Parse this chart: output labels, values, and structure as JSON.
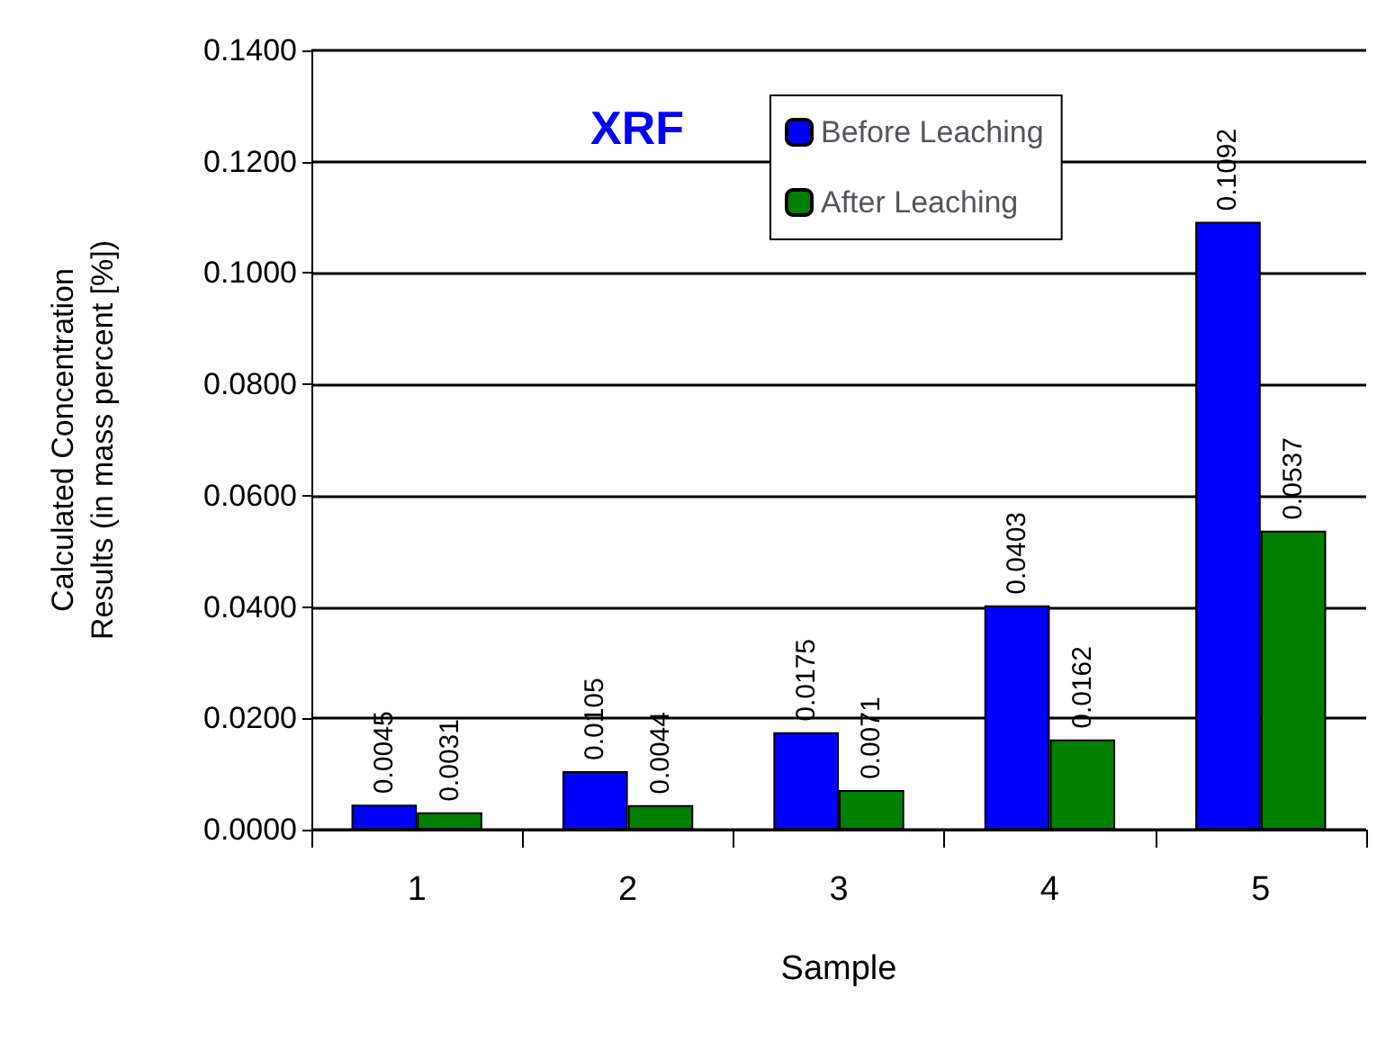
{
  "chart_data": {
    "type": "bar",
    "title": "XRF",
    "xlabel": "Sample",
    "ylabel": "Calculated Concentration\nResults (in mass percent [%])",
    "categories": [
      "1",
      "2",
      "3",
      "4",
      "5"
    ],
    "series": [
      {
        "name": "Before Leaching",
        "color": "#0000ff",
        "values": [
          0.0045,
          0.0105,
          0.0175,
          0.0403,
          0.1092
        ]
      },
      {
        "name": "After Leaching",
        "color": "#008000",
        "values": [
          0.0031,
          0.0044,
          0.0071,
          0.0162,
          0.0537
        ]
      }
    ],
    "ylim": [
      0,
      0.14
    ],
    "yticks": [
      {
        "value": 0,
        "label": "0.0000"
      },
      {
        "value": 0.02,
        "label": "0.0200"
      },
      {
        "value": 0.04,
        "label": "0.0400"
      },
      {
        "value": 0.06,
        "label": "0.0600"
      },
      {
        "value": 0.08,
        "label": "0.0800"
      },
      {
        "value": 0.1,
        "label": "0.1000"
      },
      {
        "value": 0.12,
        "label": "0.1200"
      },
      {
        "value": 0.14,
        "label": "0.1400"
      }
    ],
    "grid": "y",
    "legend": "top",
    "data_labels": true
  }
}
